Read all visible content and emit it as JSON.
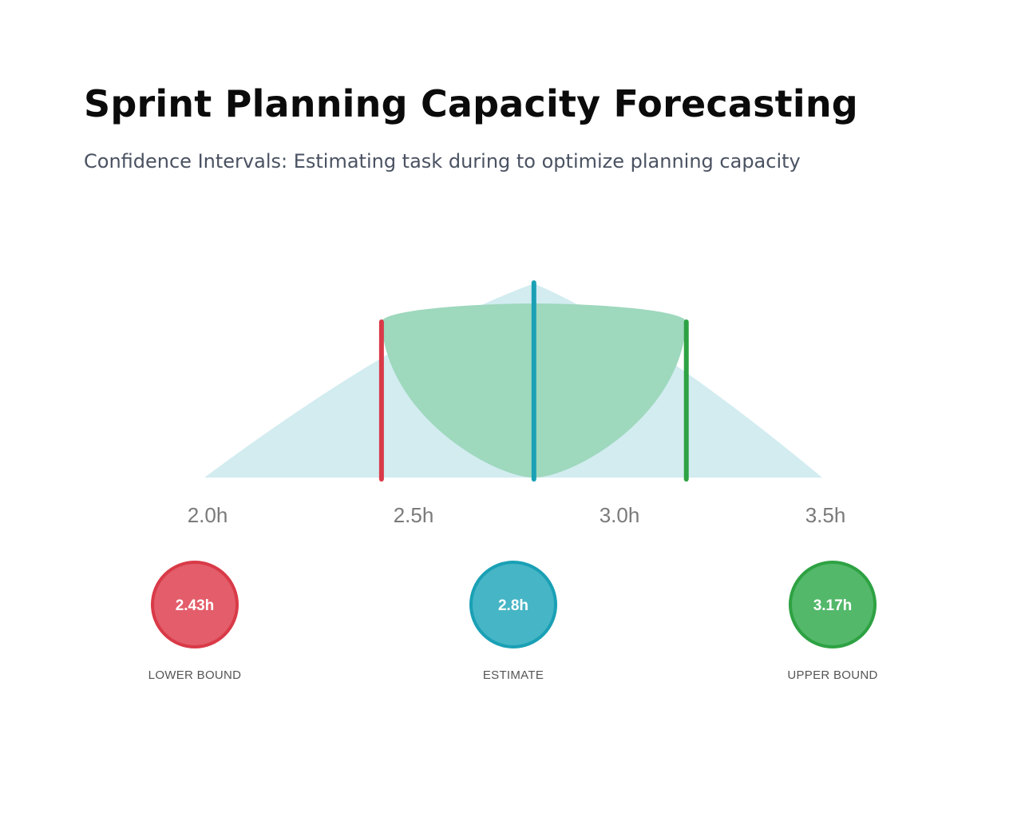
{
  "header": {
    "title": "Sprint Planning Capacity Forecasting",
    "subtitle": "Confidence Intervals: Estimating task during to optimize planning capacity"
  },
  "chart_data": {
    "type": "area",
    "x_ticks": [
      "2.0h",
      "2.5h",
      "3.0h",
      "3.5h"
    ],
    "xlim": [
      2.0,
      3.5
    ],
    "grid": false,
    "lower_bound": 2.43,
    "estimate": 2.8,
    "upper_bound": 3.17,
    "badges": [
      {
        "key": "lower",
        "value": "2.43h",
        "label": "LOWER BOUND",
        "fill": "#e35d6a",
        "stroke": "#d93a48"
      },
      {
        "key": "estimate",
        "value": "2.8h",
        "label": "ESTIMATE",
        "fill": "#46b5c5",
        "stroke": "#1aa0b5"
      },
      {
        "key": "upper",
        "value": "3.17h",
        "label": "UPPER BOUND",
        "fill": "#53b86a",
        "stroke": "#2ea243"
      }
    ],
    "colors": {
      "distribution": "#d2ecf0",
      "interval": "#9ed8bd",
      "lower_line": "#d93a48",
      "estimate_line": "#1aa0b5",
      "upper_line": "#2ea243"
    }
  }
}
